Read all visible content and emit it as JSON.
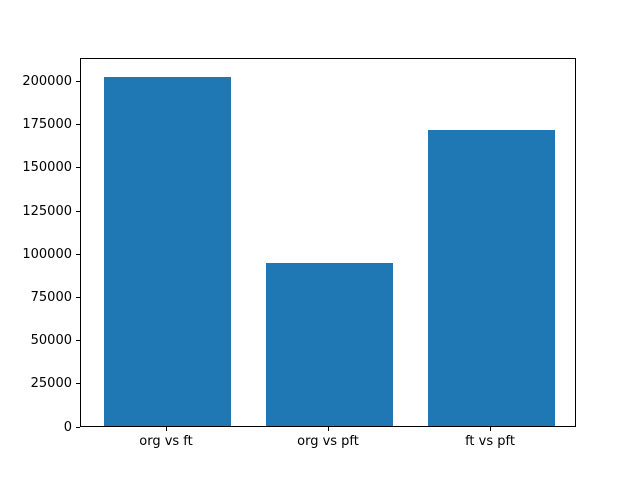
{
  "figure": {
    "background": "#ffffff",
    "title": ""
  },
  "chart_data": {
    "type": "bar",
    "categories": [
      "org vs ft",
      "org vs pft",
      "ft vs pft"
    ],
    "values": [
      203500,
      95000,
      172500
    ],
    "title": "",
    "xlabel": "",
    "ylabel": "",
    "ylim": [
      0,
      213700
    ],
    "yticks": [
      0,
      25000,
      50000,
      75000,
      100000,
      125000,
      150000,
      175000,
      200000
    ],
    "bar_color": "#1f77b4",
    "axis_color": "#000000",
    "text_color": "#000000",
    "grid": false,
    "legend": null
  }
}
